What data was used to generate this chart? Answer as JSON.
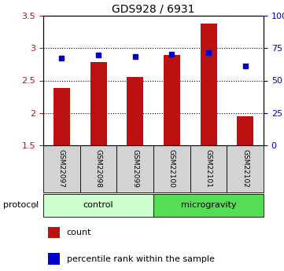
{
  "title": "GDS928 / 6931",
  "samples": [
    "GSM22097",
    "GSM22098",
    "GSM22099",
    "GSM22100",
    "GSM22101",
    "GSM22102"
  ],
  "bar_values": [
    2.38,
    2.78,
    2.56,
    2.9,
    3.38,
    1.95
  ],
  "dot_values": [
    2.84,
    2.9,
    2.87,
    2.91,
    2.93,
    2.72
  ],
  "ylim_left": [
    1.5,
    3.5
  ],
  "ylim_right": [
    0,
    100
  ],
  "yticks_left": [
    1.5,
    2.0,
    2.5,
    3.0,
    3.5
  ],
  "ytick_labels_left": [
    "1.5",
    "2",
    "2.5",
    "3",
    "3.5"
  ],
  "yticks_right": [
    0,
    25,
    50,
    75,
    100
  ],
  "ytick_labels_right": [
    "0",
    "25",
    "50",
    "75",
    "100%"
  ],
  "bar_color": "#bb1111",
  "dot_color": "#0000cc",
  "n_control": 3,
  "n_micro": 3,
  "control_label": "control",
  "microgravity_label": "microgravity",
  "control_color": "#ccffcc",
  "microgravity_color": "#55dd55",
  "bar_width": 0.45,
  "legend_count": "count",
  "legend_pct": "percentile rank within the sample",
  "grid_yticks": [
    2.0,
    2.5,
    3.0
  ],
  "label_color_left": "#bb1111",
  "label_color_right": "#0000cc"
}
